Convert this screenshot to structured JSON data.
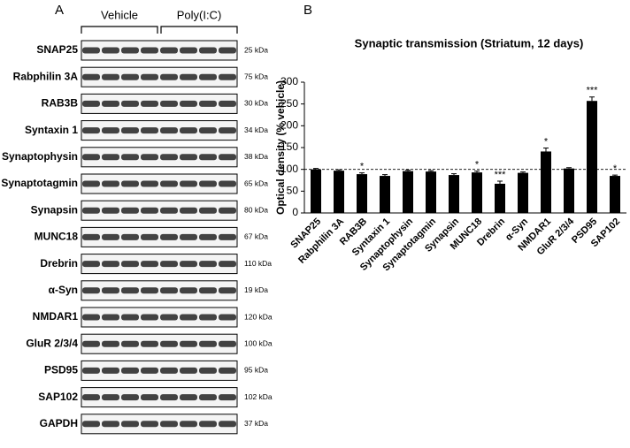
{
  "panel_a": {
    "label": "A",
    "groups": [
      "Vehicle",
      "Poly(I:C)"
    ],
    "blots": [
      {
        "name": "SNAP25",
        "size": "25 kDa"
      },
      {
        "name": "Rabphilin 3A",
        "size": "75 kDa"
      },
      {
        "name": "RAB3B",
        "size": "30 kDa"
      },
      {
        "name": "Syntaxin 1",
        "size": "34 kDa"
      },
      {
        "name": "Synaptophysin",
        "size": "38 kDa"
      },
      {
        "name": "Synaptotagmin",
        "size": "65 kDa"
      },
      {
        "name": "Synapsin",
        "size": "80 kDa"
      },
      {
        "name": "MUNC18",
        "size": "67 kDa"
      },
      {
        "name": "Drebrin",
        "size": "110 kDa"
      },
      {
        "name": "α-Syn",
        "size": "19 kDa"
      },
      {
        "name": "NMDAR1",
        "size": "120 kDa"
      },
      {
        "name": "GluR 2/3/4",
        "size": "100 kDa"
      },
      {
        "name": "PSD95",
        "size": "95 kDa"
      },
      {
        "name": "SAP102",
        "size": "102 kDa"
      },
      {
        "name": "GAPDH",
        "size": "37 kDa"
      }
    ]
  },
  "chart_data": {
    "type": "bar",
    "panel_label": "B",
    "title": "Synaptic transmission (Striatum, 12 days)",
    "y_label": "Optical density (% vehicle)",
    "categories": [
      "SNAP25",
      "Rabphilin 3A",
      "RAB3B",
      "Syntaxin 1",
      "Synaptophysin",
      "Synaptotagmin",
      "Synapsin",
      "MUNC18",
      "Drebrin",
      "α-Syn",
      "NMDAR1",
      "GluR 2/3/4",
      "PSD95",
      "SAP102"
    ],
    "values": [
      100,
      97,
      89,
      85,
      96,
      95,
      87,
      93,
      67,
      92,
      141,
      102,
      257,
      85
    ],
    "errors": [
      2,
      2,
      3,
      3,
      2,
      2,
      3,
      3,
      6,
      2,
      8,
      2,
      9,
      2
    ],
    "annotations": [
      null,
      null,
      "*",
      null,
      null,
      null,
      null,
      "*",
      "***",
      null,
      "*",
      null,
      "***",
      "*"
    ],
    "color": "#000000",
    "reference_line": 100,
    "ylim": [
      0,
      300
    ],
    "yticks": [
      0,
      50,
      100,
      150,
      200,
      250,
      300
    ]
  }
}
